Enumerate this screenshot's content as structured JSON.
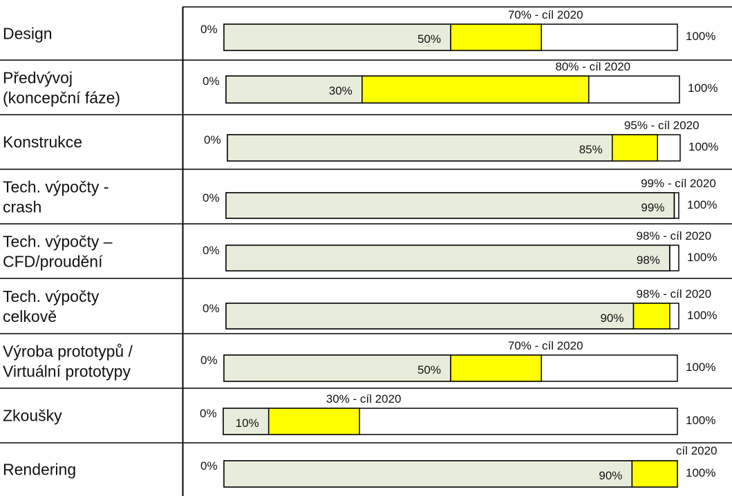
{
  "colors": {
    "current": "#e8eddb",
    "target": "#ffff00",
    "remaining": "#ffffff",
    "border": "#000000",
    "grid": "#000000"
  },
  "chart_data": {
    "type": "bar",
    "orientation": "horizontal",
    "stacked": true,
    "xlim": [
      0,
      100
    ],
    "axis_start_label": "0%",
    "axis_end_label": "100%",
    "grid": false,
    "legend": "none",
    "categories": [
      {
        "label_lines": [
          "Design"
        ],
        "current": 50,
        "current_label": "50%",
        "target": 70,
        "target_label": "70% - cíl 2020"
      },
      {
        "label_lines": [
          "Předvývoj",
          "(koncepční fáze)"
        ],
        "current": 30,
        "current_label": "30%",
        "target": 80,
        "target_label": "80% - cíl 2020"
      },
      {
        "label_lines": [
          "Konstrukce"
        ],
        "current": 85,
        "current_label": "85%",
        "target": 95,
        "target_label": "95% - cíl 2020"
      },
      {
        "label_lines": [
          "Tech. výpočty -",
          "crash"
        ],
        "current": 99,
        "current_label": "99%",
        "target": 99,
        "target_label": "99% - cíl 2020"
      },
      {
        "label_lines": [
          "Tech. výpočty –",
          "CFD/proudění"
        ],
        "current": 98,
        "current_label": "98%",
        "target": 98,
        "target_label": "98% - cíl 2020"
      },
      {
        "label_lines": [
          "Tech. výpočty",
          "celkově"
        ],
        "current": 90,
        "current_label": "90%",
        "target": 98,
        "target_label": "98% - cíl 2020"
      },
      {
        "label_lines": [
          "Výroba prototypů /",
          "Virtuální prototypy"
        ],
        "current": 50,
        "current_label": "50%",
        "target": 70,
        "target_label": "70% - cíl 2020"
      },
      {
        "label_lines": [
          "Zkoušky"
        ],
        "current": 10,
        "current_label": "10%",
        "target": 30,
        "target_label": "30% - cíl 2020"
      },
      {
        "label_lines": [
          "Rendering"
        ],
        "current": 90,
        "current_label": "90%",
        "target": 100,
        "target_label": "cíl 2020"
      }
    ]
  }
}
